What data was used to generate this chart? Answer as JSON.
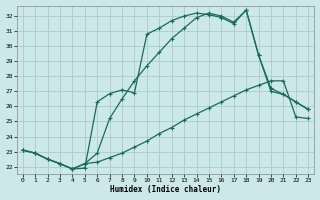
{
  "xlabel": "Humidex (Indice chaleur)",
  "background_color": "#cce8e8",
  "grid_color": "#aacccc",
  "line_color": "#1a6b5a",
  "xlim": [
    -0.5,
    23.5
  ],
  "ylim": [
    21.5,
    32.7
  ],
  "yticks": [
    22,
    23,
    24,
    25,
    26,
    27,
    28,
    29,
    30,
    31,
    32
  ],
  "xticks": [
    0,
    1,
    2,
    3,
    4,
    5,
    6,
    7,
    8,
    9,
    10,
    11,
    12,
    13,
    14,
    15,
    16,
    17,
    18,
    19,
    20,
    21,
    22,
    23
  ],
  "curve1_x": [
    0,
    1,
    2,
    3,
    4,
    5,
    6,
    7,
    8,
    9,
    10,
    11,
    12,
    13,
    14,
    15,
    16,
    17,
    18,
    19,
    20,
    21,
    22,
    23
  ],
  "curve1_y": [
    23.1,
    22.9,
    22.5,
    22.2,
    21.85,
    22.2,
    22.3,
    22.6,
    22.9,
    23.3,
    23.7,
    24.2,
    24.6,
    25.1,
    25.5,
    25.9,
    26.3,
    26.7,
    27.1,
    27.4,
    27.7,
    27.7,
    25.3,
    25.2
  ],
  "curve2_x": [
    0,
    1,
    2,
    3,
    4,
    5,
    6,
    7,
    8,
    9,
    10,
    11,
    12,
    13,
    14,
    15,
    16,
    17,
    18,
    19,
    20,
    21,
    22,
    23
  ],
  "curve2_y": [
    23.1,
    22.9,
    22.5,
    22.2,
    21.85,
    22.2,
    22.9,
    25.2,
    26.5,
    27.7,
    28.7,
    29.6,
    30.5,
    31.2,
    31.9,
    32.2,
    32.0,
    31.6,
    32.4,
    29.4,
    27.2,
    26.8,
    26.3,
    25.8
  ],
  "curve3_x": [
    0,
    1,
    2,
    3,
    4,
    5,
    6,
    7,
    8,
    9,
    10,
    11,
    12,
    13,
    14,
    15,
    16,
    17,
    18,
    19,
    20,
    21,
    22,
    23
  ],
  "curve3_y": [
    23.1,
    22.9,
    22.5,
    22.2,
    21.85,
    21.9,
    26.3,
    26.85,
    27.1,
    26.9,
    30.8,
    31.2,
    31.7,
    32.0,
    32.2,
    32.1,
    31.9,
    31.5,
    32.4,
    29.4,
    27.0,
    26.8,
    26.3,
    25.8
  ]
}
